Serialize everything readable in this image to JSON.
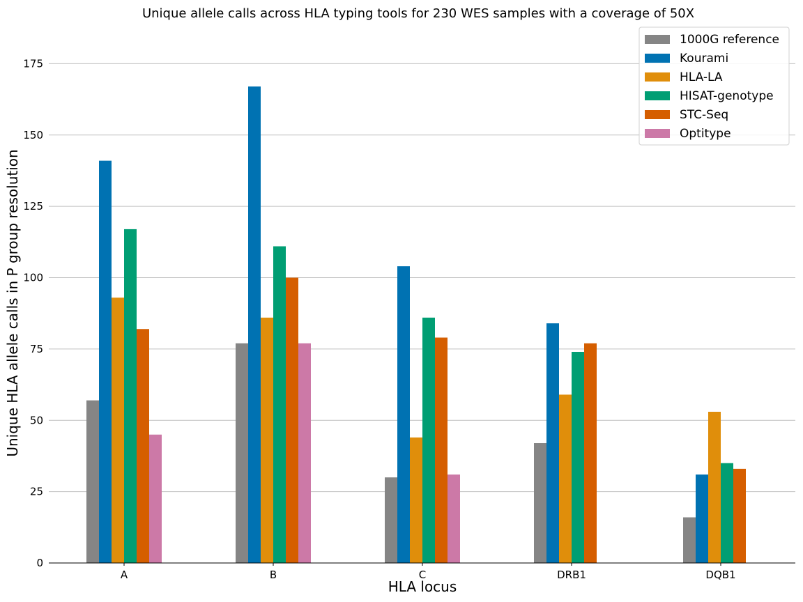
{
  "chart_data": {
    "type": "bar",
    "title": "Unique allele calls across HLA typing tools for 230 WES samples with a coverage of 50X",
    "xlabel": "HLA locus",
    "ylabel": "Unique HLA allele calls in P group resolution",
    "categories": [
      "A",
      "B",
      "C",
      "DRB1",
      "DQB1"
    ],
    "ylim": [
      0,
      190
    ],
    "yticks": [
      0,
      25,
      50,
      75,
      100,
      125,
      150,
      175
    ],
    "grid": "horizontal",
    "legend_position": "top-right",
    "series": [
      {
        "name": "1000G reference",
        "color": "#858585",
        "values": [
          57,
          77,
          30,
          42,
          16
        ]
      },
      {
        "name": "Kourami",
        "color": "#0072b2",
        "values": [
          141,
          167,
          104,
          84,
          31
        ]
      },
      {
        "name": "HLA-LA",
        "color": "#e08e0b",
        "values": [
          93,
          86,
          44,
          59,
          53
        ]
      },
      {
        "name": "HISAT-genotype",
        "color": "#009e73",
        "values": [
          117,
          111,
          86,
          74,
          35
        ]
      },
      {
        "name": "STC-Seq",
        "color": "#d55e00",
        "values": [
          82,
          100,
          79,
          77,
          33
        ]
      },
      {
        "name": "Optitype",
        "color": "#cc79a7",
        "values": [
          45,
          77,
          31,
          null,
          null
        ]
      }
    ]
  }
}
